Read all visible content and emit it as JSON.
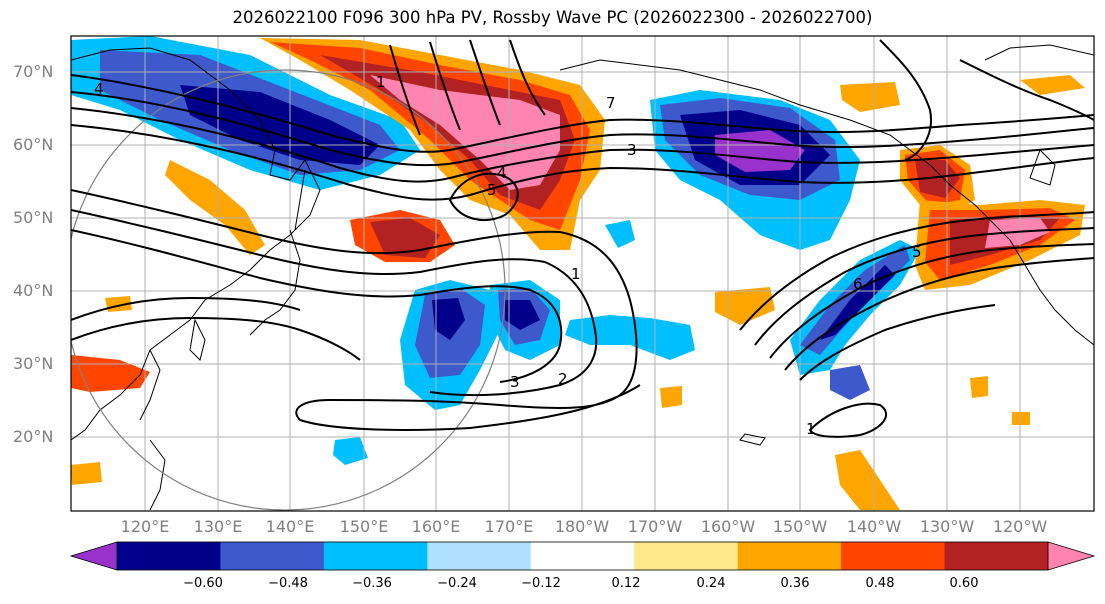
{
  "title": "2026022100 F096 300 hPa PV, Rossby Wave PC (2026022300 - 2026022700)",
  "lat_labels": [
    "70°N",
    "60°N",
    "50°N",
    "40°N",
    "30°N",
    "20°N"
  ],
  "lon_labels": [
    "120°E",
    "130°E",
    "140°E",
    "150°E",
    "160°E",
    "170°E",
    "180°W",
    "170°W",
    "160°W",
    "150°W",
    "140°W",
    "130°W",
    "120°W"
  ],
  "contour_labels": [
    "4",
    "1",
    "7",
    "3",
    "4",
    "5",
    "1",
    "3",
    "2",
    "6",
    "5",
    "1"
  ],
  "colorbar": {
    "colors": [
      "#9932cc",
      "#00008b",
      "#3d59cc",
      "#00bfff",
      "#b0e0ff",
      "#ffffff",
      "#ffe98a",
      "#ffa500",
      "#ff4500",
      "#b22222",
      "#ff85b0"
    ],
    "tick_labels": [
      "−0.60",
      "−0.48",
      "−0.36",
      "−0.24",
      "−0.12",
      "0.12",
      "0.24",
      "0.36",
      "0.48",
      "0.60"
    ]
  }
}
